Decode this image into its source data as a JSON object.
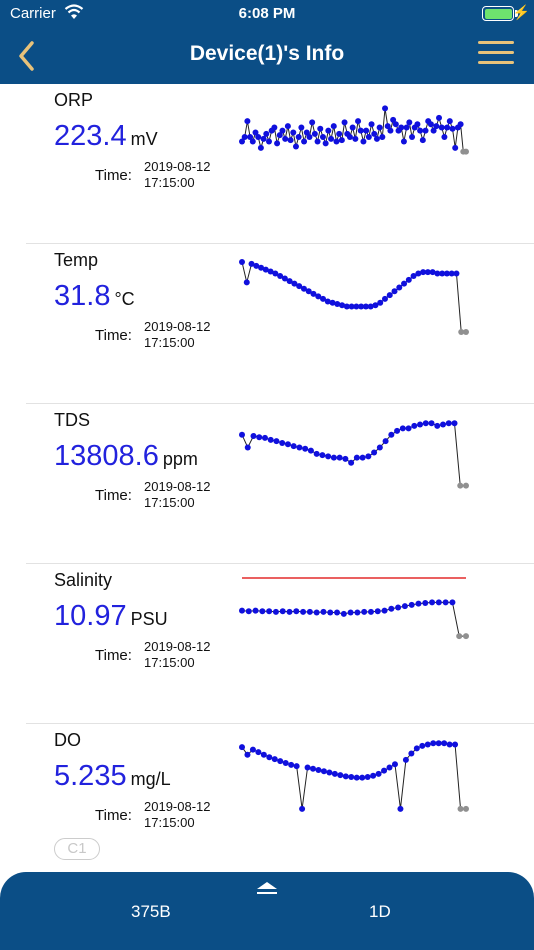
{
  "status": {
    "carrier": "Carrier",
    "time": "6:08 PM",
    "battery_level": 1.0
  },
  "nav": {
    "title": "Device(1)'s Info"
  },
  "sensors": [
    {
      "name": "ORP",
      "value": "223.4",
      "unit": "mV",
      "time_label": "Time:",
      "date": "2019-08-12",
      "clock": "17:15:00"
    },
    {
      "name": "Temp",
      "value": "31.8",
      "unit": "°C",
      "time_label": "Time:",
      "date": "2019-08-12",
      "clock": "17:15:00"
    },
    {
      "name": "TDS",
      "value": "13808.6",
      "unit": "ppm",
      "time_label": "Time:",
      "date": "2019-08-12",
      "clock": "17:15:00"
    },
    {
      "name": "Salinity",
      "value": "10.97",
      "unit": "PSU",
      "time_label": "Time:",
      "date": "2019-08-12",
      "clock": "17:15:00"
    },
    {
      "name": "DO",
      "value": "5.235",
      "unit": "mg/L",
      "time_label": "Time:",
      "date": "2019-08-12",
      "clock": "17:15:00"
    }
  ],
  "chip": {
    "label": "C1"
  },
  "bottom": {
    "tab1": "375B",
    "tab2": "1D"
  },
  "colors": {
    "bar": "#0b4e86",
    "accent": "#e8c27a",
    "value": "#2222dd",
    "point": "#1010dd",
    "dropped_point": "#909090",
    "limit_line": "#dd0000"
  },
  "icons": {
    "back": "chevron-left-icon",
    "menu": "hamburger-menu-icon",
    "wifi": "wifi-icon",
    "battery": "battery-icon",
    "handle": "eject-up-icon"
  },
  "chart_data": [
    {
      "type": "line",
      "title": "ORP",
      "values": [
        0.62,
        0.55,
        0.3,
        0.55,
        0.62,
        0.48,
        0.55,
        0.72,
        0.58,
        0.5,
        0.62,
        0.45,
        0.4,
        0.65,
        0.52,
        0.45,
        0.58,
        0.38,
        0.6,
        0.48,
        0.7,
        0.55,
        0.4,
        0.62,
        0.48,
        0.55,
        0.32,
        0.5,
        0.62,
        0.42,
        0.55,
        0.65,
        0.45,
        0.58,
        0.38,
        0.62,
        0.5,
        0.6,
        0.32,
        0.5,
        0.55,
        0.4,
        0.58,
        0.3,
        0.45,
        0.62,
        0.45,
        0.55,
        0.35,
        0.5,
        0.58,
        0.4,
        0.55,
        0.1,
        0.38,
        0.45,
        0.28,
        0.35,
        0.45,
        0.4,
        0.62,
        0.4,
        0.32,
        0.55,
        0.4,
        0.35,
        0.45,
        0.6,
        0.45,
        0.3,
        0.35,
        0.45,
        0.38,
        0.25,
        0.4,
        0.55,
        0.4,
        0.3,
        0.42,
        0.72,
        0.4,
        0.35,
        0.78,
        0.78
      ],
      "dropped_tail": 2
    },
    {
      "type": "line",
      "title": "Temp",
      "values": [
        0.0,
        0.32,
        0.03,
        0.06,
        0.09,
        0.12,
        0.15,
        0.18,
        0.22,
        0.26,
        0.3,
        0.34,
        0.38,
        0.42,
        0.46,
        0.5,
        0.54,
        0.58,
        0.62,
        0.64,
        0.66,
        0.68,
        0.7,
        0.7,
        0.7,
        0.7,
        0.7,
        0.7,
        0.68,
        0.64,
        0.58,
        0.52,
        0.46,
        0.4,
        0.34,
        0.28,
        0.22,
        0.18,
        0.16,
        0.16,
        0.16,
        0.18,
        0.18,
        0.18,
        0.18,
        0.18,
        1.1,
        1.1
      ],
      "dropped_tail": 2
    },
    {
      "type": "line",
      "title": "TDS",
      "values": [
        0.2,
        0.4,
        0.22,
        0.24,
        0.25,
        0.28,
        0.3,
        0.33,
        0.35,
        0.38,
        0.4,
        0.42,
        0.45,
        0.5,
        0.52,
        0.54,
        0.56,
        0.56,
        0.58,
        0.64,
        0.56,
        0.56,
        0.54,
        0.48,
        0.4,
        0.3,
        0.2,
        0.14,
        0.1,
        0.1,
        0.06,
        0.04,
        0.02,
        0.02,
        0.06,
        0.04,
        0.02,
        0.02,
        1.0,
        1.0
      ],
      "dropped_tail": 2
    },
    {
      "type": "line",
      "title": "Salinity",
      "values": [
        0.45,
        0.46,
        0.45,
        0.46,
        0.46,
        0.47,
        0.46,
        0.47,
        0.46,
        0.47,
        0.47,
        0.48,
        0.47,
        0.48,
        0.48,
        0.5,
        0.48,
        0.48,
        0.47,
        0.47,
        0.46,
        0.45,
        0.42,
        0.4,
        0.38,
        0.36,
        0.34,
        0.33,
        0.32,
        0.32,
        0.32,
        0.32,
        0.85,
        0.85
      ],
      "dropped_tail": 2,
      "reference_line": true
    },
    {
      "type": "line",
      "title": "DO",
      "values": [
        0.08,
        0.2,
        0.12,
        0.16,
        0.2,
        0.24,
        0.27,
        0.3,
        0.33,
        0.36,
        0.38,
        1.05,
        0.4,
        0.42,
        0.44,
        0.46,
        0.48,
        0.5,
        0.52,
        0.54,
        0.55,
        0.56,
        0.56,
        0.55,
        0.53,
        0.5,
        0.45,
        0.4,
        0.35,
        1.05,
        0.28,
        0.18,
        0.1,
        0.06,
        0.04,
        0.02,
        0.02,
        0.02,
        0.04,
        0.04,
        1.05,
        1.05
      ],
      "dropped_tail": 2
    }
  ]
}
